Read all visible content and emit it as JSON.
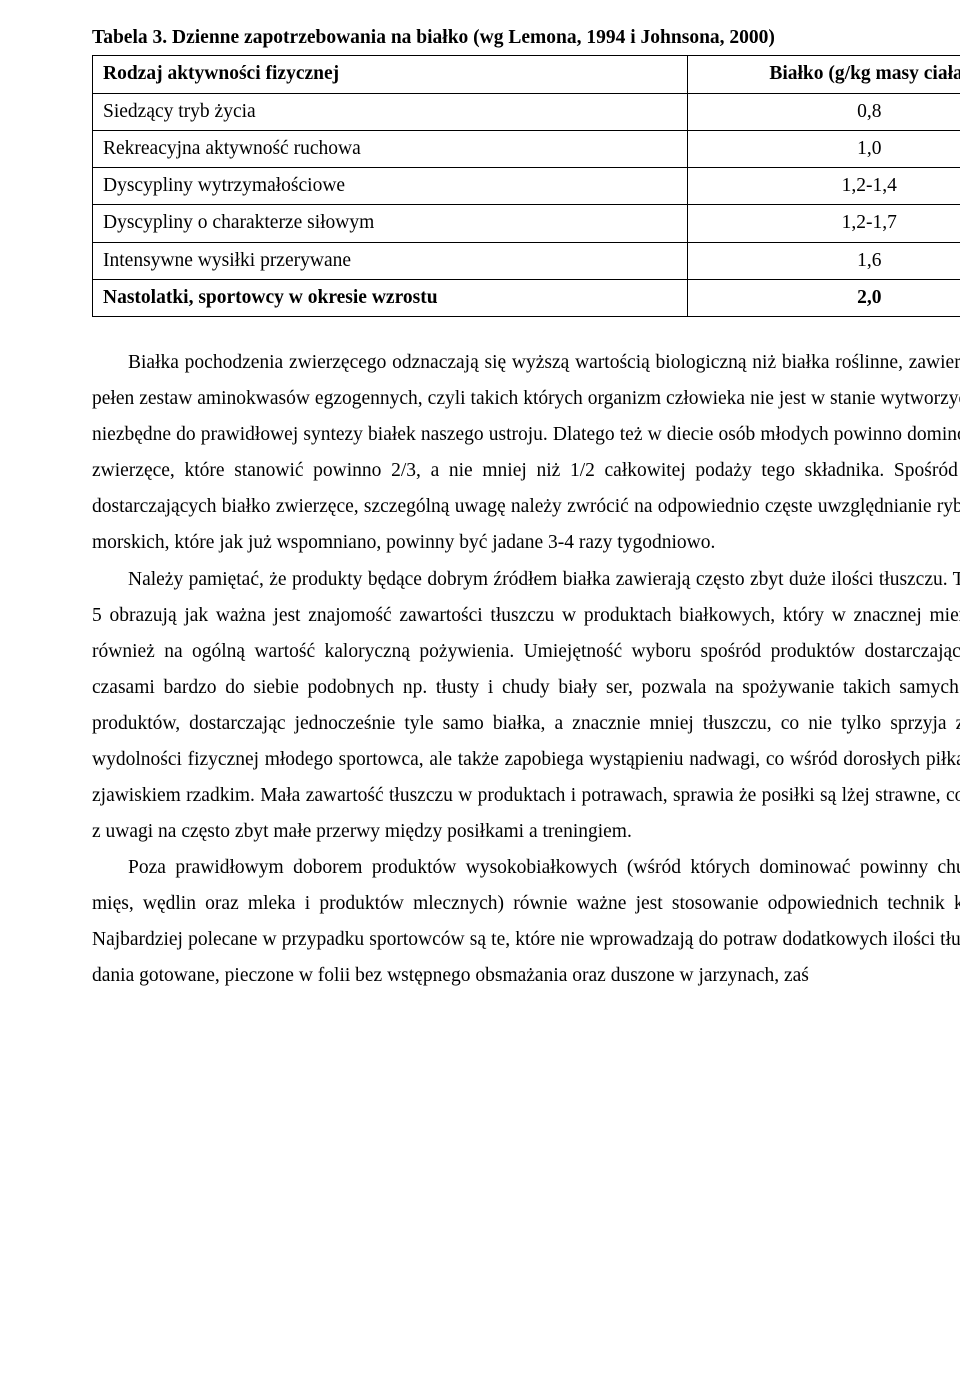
{
  "caption": "Tabela 3. Dzienne zapotrzebowania na białko  (wg Lemona, 1994 i Johnsona, 2000)",
  "table": {
    "header": {
      "col1": "Rodzaj aktywności fizycznej",
      "col2": "Białko (g/kg masy ciała)"
    },
    "rows": [
      {
        "label": "Siedzący tryb życia",
        "value": "0,8"
      },
      {
        "label": "Rekreacyjna aktywność ruchowa",
        "value": "1,0"
      },
      {
        "label": "Dyscypliny wytrzymałościowe",
        "value": "1,2-1,4"
      },
      {
        "label": "Dyscypliny o charakterze siłowym",
        "value": "1,2-1,7"
      },
      {
        "label": "Intensywne wysiłki przerywane",
        "value": "1,6"
      },
      {
        "label": "Nastolatki, sportowcy w okresie wzrostu",
        "value": "2,0"
      }
    ]
  },
  "paragraphs": {
    "p1": "Białka pochodzenia zwierzęcego odznaczają się wyższą wartością biologiczną niż białka roślinne, zawierają bowiem pełen zestaw aminokwasów egzogennych, czyli takich których organizm człowieka nie jest w stanie wytworzyć, a które są niezbędne do prawidłowej syntezy białek naszego ustroju. Dlatego też w  diecie osób młodych powinno dominować białko zwierzęce, które stanowić powinno 2/3, a nie mniej niż 1/2 całkowitej podaży tego składnika. Spośród produktów dostarczających białko zwierzęce, szczególną uwagę należy zwrócić na odpowiednio częste uwzględnianie ryb, zwłaszcza morskich, które jak już wspomniano, powinny być jadane 3-4 razy tygodniowo.",
    "p2": "Należy pamiętać, że produkty będące dobrym źródłem białka zawierają często zbyt duże ilości tłuszczu. Tabele nr 4 i 5 obrazują jak ważna jest znajomość zawartości tłuszczu w produktach białkowych, który w znacznej mierze wpływa również na ogólną wartość kaloryczną pożywienia. Umiejętność wyboru spośród produktów dostarczających białko, czasami bardzo do siebie podobnych np. tłusty i chudy biały ser,  pozwala na spożywanie takich samych ilości tych produktów, dostarczając jednocześnie tyle samo białka, a  znacznie mniej tłuszczu, co nie tylko sprzyja zwiększeniu wydolności fizycznej młodego sportowca, ale także zapobiega  wystąpieniu nadwagi, co wśród dorosłych piłkarzy  nie jest zjawiskiem rzadkim. Mała zawartość tłuszczu w produktach i potrawach, sprawia że posiłki są lżej strawne, co jest ważne z uwagi na często zbyt małe przerwy między posiłkami a treningiem.",
    "p3": "Poza prawidłowym doborem produktów wysokobiałkowych (wśród których dominować powinny chude gatunki mięs, wędlin oraz mleka i produktów mlecznych) równie ważne jest stosowanie odpowiednich technik kulinarnych. Najbardziej polecane  w przypadku sportowców są te, które nie wprowadzają do potraw dodatkowych ilości tłuszczu, czyli dania gotowane, pieczone w folii bez wstępnego obsmażania oraz duszone w jarzynach, zaś"
  }
}
